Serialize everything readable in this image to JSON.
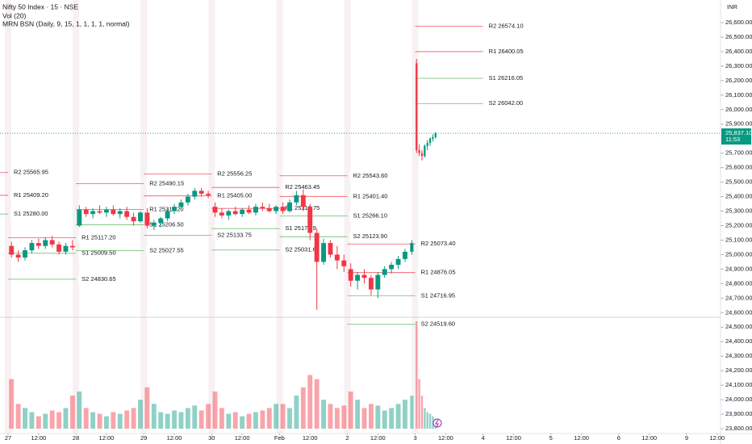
{
  "chart_data": {
    "type": "candlestick",
    "title": "Nifty 50 Index · 15 · NSE",
    "subtitles": [
      "Vol (20)",
      "MRN BSN (Daily, 9, 15, 1, 1, 1, 1, normal)"
    ],
    "currency": "INR",
    "up_color": "#089981",
    "down_color": "#f23645",
    "x": [
      0.05,
      0.15,
      0.25,
      0.35,
      0.45,
      0.55,
      0.65,
      0.75,
      0.85,
      0.95,
      1.05,
      1.15,
      1.25,
      1.35,
      1.45,
      1.55,
      1.65,
      1.75,
      1.85,
      1.95,
      2.05,
      2.15,
      2.25,
      2.35,
      2.45,
      2.55,
      2.65,
      2.75,
      2.85,
      2.95,
      3.05,
      3.15,
      3.25,
      3.35,
      3.45,
      3.55,
      3.65,
      3.75,
      3.85,
      3.95,
      4.05,
      4.15,
      4.25,
      4.35,
      4.45,
      4.55,
      4.65,
      4.75,
      4.85,
      4.95,
      5.05,
      5.15,
      5.25,
      5.35,
      5.45,
      5.55,
      5.65,
      5.75,
      5.85,
      5.95,
      6.02,
      6.06,
      6.1,
      6.14,
      6.18,
      6.22,
      6.26,
      6.3
    ],
    "open": [
      25060,
      25000,
      24980,
      25030,
      25080,
      25060,
      25100,
      25070,
      25020,
      25060,
      25200,
      25310,
      25280,
      25300,
      25290,
      25310,
      25280,
      25300,
      25260,
      25230,
      25290,
      25200,
      25220,
      25250,
      25300,
      25330,
      25360,
      25400,
      25440,
      25420,
      25330,
      25290,
      25270,
      25300,
      25280,
      25310,
      25290,
      25330,
      25320,
      25300,
      25330,
      25300,
      25360,
      25410,
      25330,
      25150,
      24950,
      25080,
      25000,
      24960,
      24900,
      24820,
      24860,
      24840,
      24760,
      24860,
      24900,
      24930,
      24970,
      25020,
      26320,
      25720,
      25700,
      25680,
      25750,
      25770,
      25800,
      25810
    ],
    "high": [
      25090,
      25030,
      25050,
      25100,
      25110,
      25120,
      25130,
      25090,
      25080,
      25100,
      25340,
      25330,
      25320,
      25340,
      25330,
      25340,
      25320,
      25330,
      25290,
      25300,
      25320,
      25240,
      25260,
      25320,
      25350,
      25380,
      25420,
      25460,
      25460,
      25440,
      25360,
      25320,
      25310,
      25330,
      25320,
      25340,
      25350,
      25360,
      25350,
      25340,
      25360,
      25380,
      25440,
      25450,
      25350,
      25180,
      25110,
      25100,
      25060,
      25000,
      24940,
      24880,
      24900,
      24860,
      24880,
      24920,
      24950,
      24990,
      25040,
      25100,
      26350,
      25760,
      25720,
      25760,
      25790,
      25810,
      25830,
      25845
    ],
    "low": [
      24980,
      24950,
      24960,
      25010,
      25040,
      25040,
      25050,
      25000,
      25000,
      25030,
      25190,
      25260,
      25250,
      25280,
      25260,
      25270,
      25250,
      25240,
      25200,
      25220,
      25180,
      25170,
      25190,
      25230,
      25280,
      25310,
      25340,
      25380,
      25400,
      25390,
      25260,
      25250,
      25240,
      25270,
      25260,
      25280,
      25270,
      25300,
      25290,
      25280,
      25280,
      25290,
      25340,
      25300,
      25100,
      24620,
      24930,
      24980,
      24900,
      24880,
      24780,
      24760,
      24800,
      24720,
      24700,
      24840,
      24870,
      24900,
      24950,
      25000,
      25700,
      25680,
      25650,
      25670,
      25720,
      25750,
      25780,
      25800
    ],
    "close": [
      25000,
      24980,
      25030,
      25080,
      25060,
      25100,
      25070,
      25020,
      25060,
      25050,
      25310,
      25280,
      25300,
      25290,
      25310,
      25280,
      25300,
      25260,
      25230,
      25290,
      25200,
      25220,
      25250,
      25300,
      25330,
      25360,
      25400,
      25440,
      25420,
      25410,
      25290,
      25270,
      25300,
      25280,
      25310,
      25290,
      25330,
      25320,
      25300,
      25330,
      25300,
      25360,
      25410,
      25330,
      25150,
      24950,
      25080,
      25000,
      24960,
      24920,
      24820,
      24860,
      24840,
      24760,
      24860,
      24900,
      24930,
      24970,
      25020,
      25080,
      25720,
      25700,
      25680,
      25750,
      25770,
      25800,
      25810,
      25837.1
    ],
    "volume": [
      60,
      30,
      25,
      20,
      15,
      18,
      22,
      20,
      25,
      40,
      45,
      25,
      20,
      18,
      15,
      20,
      18,
      22,
      25,
      35,
      50,
      30,
      20,
      18,
      22,
      20,
      25,
      28,
      22,
      30,
      45,
      25,
      18,
      20,
      15,
      18,
      20,
      22,
      25,
      30,
      30,
      25,
      40,
      50,
      65,
      60,
      35,
      30,
      25,
      28,
      45,
      35,
      25,
      30,
      28,
      22,
      25,
      30,
      35,
      40,
      130,
      60,
      40,
      25,
      20,
      18,
      15,
      12
    ],
    "last_price_label": "25,837.10",
    "countdown": "11:53",
    "xlim": [
      -0.119,
      10.5
    ],
    "xticks": [
      {
        "value": 0,
        "label": "27"
      },
      {
        "value": 0.45,
        "label": "12:00"
      },
      {
        "value": 1,
        "label": "28"
      },
      {
        "value": 1.45,
        "label": "12:00"
      },
      {
        "value": 2,
        "label": "29"
      },
      {
        "value": 2.45,
        "label": "12:00"
      },
      {
        "value": 3,
        "label": "30"
      },
      {
        "value": 3.45,
        "label": "12:00"
      },
      {
        "value": 4,
        "label": "Feb"
      },
      {
        "value": 4.45,
        "label": "12:00"
      },
      {
        "value": 5,
        "label": "2"
      },
      {
        "value": 5.45,
        "label": "12:00"
      },
      {
        "value": 6,
        "label": "3"
      },
      {
        "value": 6.45,
        "label": "12:00"
      },
      {
        "value": 7,
        "label": "4"
      },
      {
        "value": 7.45,
        "label": "12:00"
      },
      {
        "value": 8,
        "label": "5"
      },
      {
        "value": 8.45,
        "label": "12:00"
      },
      {
        "value": 9,
        "label": "6"
      },
      {
        "value": 9.45,
        "label": "12:00"
      },
      {
        "value": 10,
        "label": "9"
      },
      {
        "value": 10.45,
        "label": "12:00"
      }
    ],
    "ylim": [
      23800,
      26600
    ],
    "yticks": [
      {
        "value": 26600,
        "label": "26,600.00"
      },
      {
        "value": 26500,
        "label": "26,500.00"
      },
      {
        "value": 26400,
        "label": "26,400.00"
      },
      {
        "value": 26300,
        "label": "26,300.00"
      },
      {
        "value": 26200,
        "label": "26,200.00"
      },
      {
        "value": 26100,
        "label": "26,100.00"
      },
      {
        "value": 26000,
        "label": "26,000.00"
      },
      {
        "value": 25900,
        "label": "25,900.00"
      },
      {
        "value": 25700,
        "label": "25,700.00"
      },
      {
        "value": 25600,
        "label": "25,600.00"
      },
      {
        "value": 25500,
        "label": "25,500.00"
      },
      {
        "value": 25400,
        "label": "25,400.00"
      },
      {
        "value": 25300,
        "label": "25,300.00"
      },
      {
        "value": 25200,
        "label": "25,200.00"
      },
      {
        "value": 25100,
        "label": "25,100.00"
      },
      {
        "value": 25000,
        "label": "25,000.00"
      },
      {
        "value": 24900,
        "label": "24,900.00"
      },
      {
        "value": 24800,
        "label": "24,800.00"
      },
      {
        "value": 24700,
        "label": "24,700.00"
      },
      {
        "value": 24600,
        "label": "24,600.00"
      },
      {
        "value": 24500,
        "label": "24,500.00"
      },
      {
        "value": 24400,
        "label": "24,400.00"
      },
      {
        "value": 24300,
        "label": "24,300.00"
      },
      {
        "value": 24200,
        "label": "24,200.00"
      },
      {
        "value": 24100,
        "label": "24,100.00"
      },
      {
        "value": 24000,
        "label": "24,000.00"
      },
      {
        "value": 23900,
        "label": "23,900.00"
      },
      {
        "value": 23800,
        "label": "23,800.00"
      }
    ],
    "pivots": [
      {
        "label": "R2 25565.95",
        "value": 25565.95,
        "x": [
          -1,
          0
        ],
        "color": "#f23645"
      },
      {
        "label": "R1 25409.20",
        "value": 25409.2,
        "x": [
          -1,
          0
        ],
        "color": "#f23645"
      },
      {
        "label": "S1 25280.00",
        "value": 25280.0,
        "x": [
          -1,
          0
        ],
        "color": "#4caf50"
      },
      {
        "label": "R1 25117.20",
        "value": 25117.2,
        "x": [
          0,
          1
        ],
        "color": "#f23645"
      },
      {
        "label": "S1 25009.50",
        "value": 25009.5,
        "x": [
          0,
          1
        ],
        "color": "#4caf50"
      },
      {
        "label": "S2 24830.65",
        "value": 24830.65,
        "x": [
          0,
          1
        ],
        "color": "#4caf50"
      },
      {
        "label": "R2 25490.15",
        "value": 25490.15,
        "x": [
          1,
          2
        ],
        "color": "#f23645"
      },
      {
        "label": "R1 25311.20",
        "value": 25311.2,
        "x": [
          1,
          2
        ],
        "color": "#f23645"
      },
      {
        "label": "S1 25206.50",
        "value": 25206.5,
        "x": [
          1,
          2
        ],
        "color": "#4caf50"
      },
      {
        "label": "S2 25027.55",
        "value": 25027.55,
        "x": [
          1,
          2
        ],
        "color": "#4caf50"
      },
      {
        "label": "R2 25556.25",
        "value": 25556.25,
        "x": [
          2,
          3
        ],
        "color": "#f23645"
      },
      {
        "label": "R1 25405.00",
        "value": 25405.0,
        "x": [
          2,
          3
        ],
        "color": "#f23645"
      },
      {
        "label": "S2 25133.75",
        "value": 25133.75,
        "x": [
          2,
          3
        ],
        "color": "#4caf50"
      },
      {
        "label": "R2 25463.45",
        "value": 25463.45,
        "x": [
          3,
          4
        ],
        "color": "#f23645"
      },
      {
        "label": "R1 25318.75",
        "value": 25318.75,
        "x": [
          3,
          4
        ],
        "color": "#f23645"
      },
      {
        "label": "S1 25179.9",
        "value": 25179.9,
        "x": [
          3,
          4
        ],
        "color": "#4caf50"
      },
      {
        "label": "S2 25031.6",
        "value": 25031.6,
        "x": [
          3,
          4
        ],
        "color": "#4caf50"
      },
      {
        "label": "R2 25543.60",
        "value": 25543.6,
        "x": [
          4,
          5
        ],
        "color": "#f23645"
      },
      {
        "label": "R1 25401.40",
        "value": 25401.4,
        "x": [
          4,
          5
        ],
        "color": "#f23645"
      },
      {
        "label": "S1 25266.10",
        "value": 25266.1,
        "x": [
          4,
          5
        ],
        "color": "#4caf50"
      },
      {
        "label": "S2 25123.90",
        "value": 25123.9,
        "x": [
          4,
          5
        ],
        "color": "#4caf50"
      },
      {
        "label": "R2 25073.40",
        "value": 25073.4,
        "x": [
          5,
          6
        ],
        "color": "#f23645"
      },
      {
        "label": "R1 24876.05",
        "value": 24876.05,
        "x": [
          5,
          6
        ],
        "color": "#f23645"
      },
      {
        "label": "S1 24716.95",
        "value": 24716.95,
        "x": [
          5,
          6
        ],
        "color": "#4caf50"
      },
      {
        "label": "S2 24519.60",
        "value": 24519.6,
        "x": [
          5,
          6
        ],
        "color": "#4caf50"
      },
      {
        "label": "R2 26574.10",
        "value": 26574.1,
        "x": [
          6,
          7
        ],
        "color": "#f23645"
      },
      {
        "label": "R1 26400.05",
        "value": 26400.05,
        "x": [
          6,
          7
        ],
        "color": "#f23645"
      },
      {
        "label": "S1 26216.05",
        "value": 26216.05,
        "x": [
          6,
          7
        ],
        "color": "#4caf50"
      },
      {
        "label": "S2 26042.00",
        "value": 26042.0,
        "x": [
          6,
          7
        ],
        "color": "#4caf50"
      }
    ]
  }
}
